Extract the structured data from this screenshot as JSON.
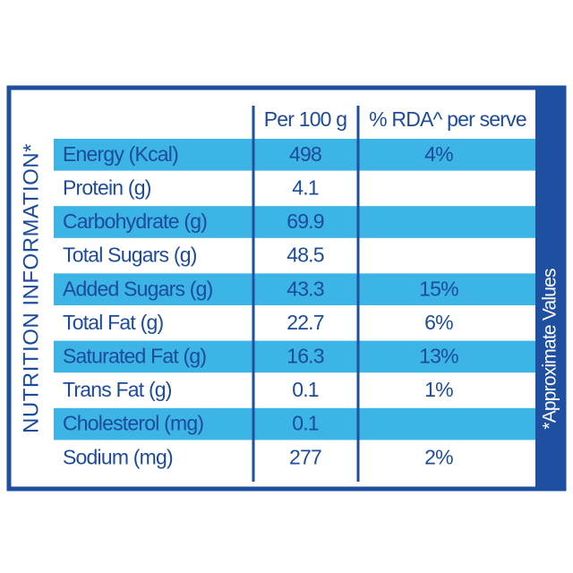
{
  "title": "NUTRITION INFORMATION*",
  "note": "*Approximate Values",
  "table": {
    "columns": [
      "Per 100 g",
      "% RDA^ per serve"
    ],
    "rows": [
      [
        "Energy (Kcal)",
        "498",
        "4%"
      ],
      [
        "Protein (g)",
        "4.1"
      ],
      [
        "Carbohydrate (g)",
        "69.9"
      ],
      [
        "Total Sugars (g)",
        "48.5"
      ],
      [
        "Added Sugars (g)",
        "43.3",
        "15%"
      ],
      [
        "Total Fat (g)",
        "22.7",
        "6%"
      ],
      [
        "Saturated Fat (g)",
        "16.3",
        "13%"
      ],
      [
        "Trans Fat (g)",
        "0.1",
        "1%"
      ],
      [
        "Cholesterol (mg)",
        "0.1"
      ],
      [
        "Sodium (mg)",
        "277",
        "2%"
      ]
    ]
  }
}
